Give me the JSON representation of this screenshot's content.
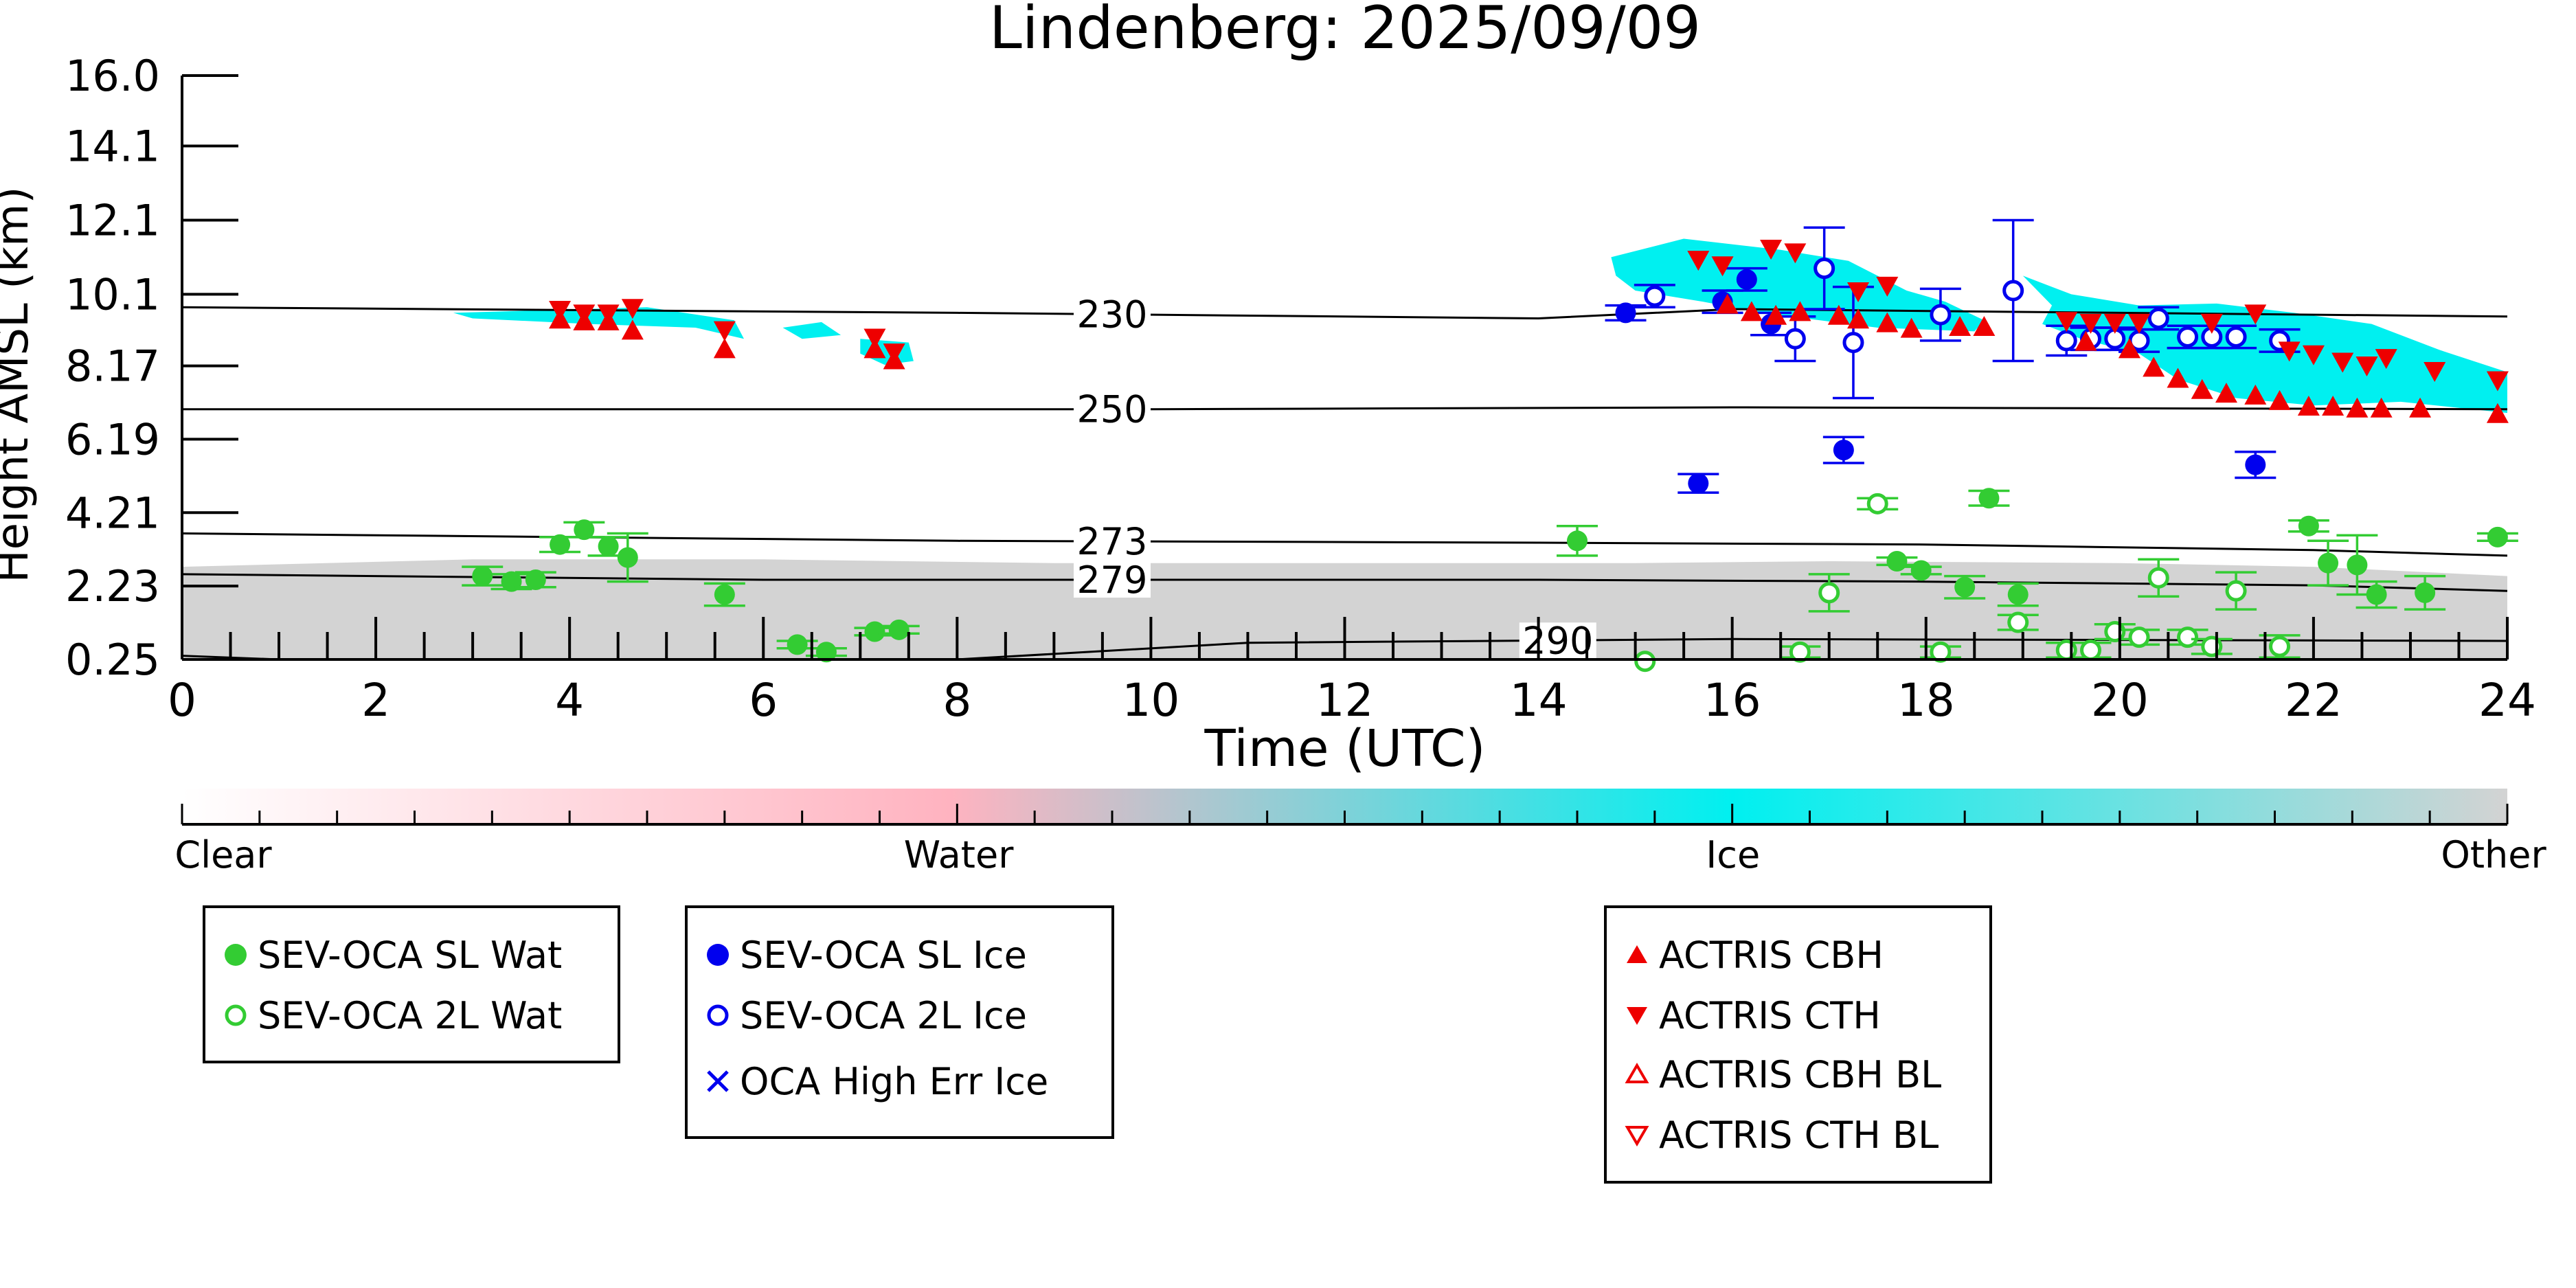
{
  "chart_data": {
    "type": "scatter",
    "title": "Lindenberg: 2025/09/09",
    "xlabel": "Time (UTC)",
    "ylabel": "Height AMSL (km)",
    "xlim": [
      0,
      24
    ],
    "ylim": [
      0.25,
      16.0
    ],
    "x_ticks": [
      0,
      2,
      4,
      6,
      8,
      10,
      12,
      14,
      16,
      18,
      20,
      22,
      24
    ],
    "x_tick_labels": [
      "0",
      "2",
      "4",
      "6",
      "8",
      "10",
      "12",
      "14",
      "16",
      "18",
      "20",
      "22",
      "24"
    ],
    "y_ticks": [
      0.25,
      2.23,
      4.21,
      6.19,
      8.17,
      10.1,
      12.1,
      14.1,
      16.0
    ],
    "y_tick_labels": [
      "0.25",
      "2.23",
      "4.21",
      "6.19",
      "8.17",
      "10.1",
      "12.1",
      "14.1",
      "16.0"
    ],
    "colorbar": {
      "labels": [
        "Clear",
        "Water",
        "Ice",
        "Other"
      ],
      "colors": [
        "#ffffff",
        "#ffb3c0",
        "#00f0f0",
        "#d3d3d3"
      ]
    },
    "isotherms": [
      {
        "label": "230",
        "label_x": 9.6,
        "points": [
          [
            0,
            9.75
          ],
          [
            8,
            9.6
          ],
          [
            14,
            9.45
          ],
          [
            16,
            9.7
          ],
          [
            24,
            9.5
          ]
        ]
      },
      {
        "label": "250",
        "label_x": 9.6,
        "points": [
          [
            0,
            7.0
          ],
          [
            10,
            7.0
          ],
          [
            16,
            7.05
          ],
          [
            24,
            7.0
          ]
        ]
      },
      {
        "label": "273",
        "label_x": 9.6,
        "points": [
          [
            0,
            3.65
          ],
          [
            8,
            3.45
          ],
          [
            14,
            3.4
          ],
          [
            18,
            3.35
          ],
          [
            22,
            3.2
          ],
          [
            24,
            3.05
          ]
        ]
      },
      {
        "label": "279",
        "label_x": 9.6,
        "points": [
          [
            0,
            2.55
          ],
          [
            6,
            2.4
          ],
          [
            14,
            2.4
          ],
          [
            18,
            2.35
          ],
          [
            22,
            2.25
          ],
          [
            24,
            2.1
          ]
        ]
      },
      {
        "label": "290",
        "label_x": 14.2,
        "points": [
          [
            0,
            0.35
          ],
          [
            1,
            0.25
          ],
          [
            8,
            0.25
          ],
          [
            11,
            0.7
          ],
          [
            16,
            0.8
          ],
          [
            24,
            0.75
          ]
        ]
      }
    ],
    "colors": {
      "water": "#33cc33",
      "ice_sl": "#0000ee",
      "ice_2l": "#0000ee",
      "actris": "#ee0000",
      "ice_region": "#00f0f0",
      "other_region": "#d3d3d3",
      "isotherm": "#000000"
    },
    "series": [
      {
        "name": "SEV-OCA SL Wat",
        "marker": "circle-filled",
        "color": "#33cc33",
        "points": [
          {
            "x": 3.1,
            "y": 2.5,
            "err": 0.25
          },
          {
            "x": 3.4,
            "y": 2.35,
            "err": 0.2
          },
          {
            "x": 3.65,
            "y": 2.4,
            "err": 0.2
          },
          {
            "x": 3.9,
            "y": 3.35,
            "err": 0.2
          },
          {
            "x": 4.15,
            "y": 3.75,
            "err": 0.2
          },
          {
            "x": 4.4,
            "y": 3.3,
            "err": 0.25
          },
          {
            "x": 4.6,
            "y": 3.0,
            "err": 0.65
          },
          {
            "x": 5.6,
            "y": 2.0,
            "err": 0.3
          },
          {
            "x": 6.35,
            "y": 0.65,
            "err": 0.1
          },
          {
            "x": 6.65,
            "y": 0.45,
            "err": 0.1
          },
          {
            "x": 7.15,
            "y": 1.0,
            "err": 0.1
          },
          {
            "x": 7.4,
            "y": 1.05,
            "err": 0.1
          },
          {
            "x": 14.4,
            "y": 3.45,
            "err": 0.4
          },
          {
            "x": 17.7,
            "y": 2.9,
            "err": 0.1
          },
          {
            "x": 17.95,
            "y": 2.65,
            "err": 0.1
          },
          {
            "x": 18.4,
            "y": 2.2,
            "err": 0.3
          },
          {
            "x": 18.65,
            "y": 4.6,
            "err": 0.2
          },
          {
            "x": 18.95,
            "y": 2.0,
            "err": 0.3
          },
          {
            "x": 21.95,
            "y": 3.85,
            "err": 0.15
          },
          {
            "x": 22.15,
            "y": 2.85,
            "err": 0.6
          },
          {
            "x": 22.45,
            "y": 2.8,
            "err": 0.8
          },
          {
            "x": 22.65,
            "y": 2.0,
            "err": 0.35
          },
          {
            "x": 23.15,
            "y": 2.05,
            "err": 0.45
          },
          {
            "x": 23.9,
            "y": 3.55,
            "err": 0.1
          }
        ]
      },
      {
        "name": "SEV-OCA 2L Wat",
        "marker": "circle-open",
        "color": "#33cc33",
        "points": [
          {
            "x": 15.1,
            "y": 0.2,
            "err": 0.0
          },
          {
            "x": 16.7,
            "y": 0.45,
            "err": 0.15
          },
          {
            "x": 17.0,
            "y": 2.05,
            "err": 0.5
          },
          {
            "x": 17.5,
            "y": 4.45,
            "err": 0.15
          },
          {
            "x": 18.15,
            "y": 0.45,
            "err": 0.15
          },
          {
            "x": 18.95,
            "y": 1.25,
            "err": 0.2
          },
          {
            "x": 19.45,
            "y": 0.5,
            "err": 0.2
          },
          {
            "x": 19.7,
            "y": 0.5,
            "err": 0.2
          },
          {
            "x": 19.95,
            "y": 1.0,
            "err": 0.2
          },
          {
            "x": 20.2,
            "y": 0.85,
            "err": 0.2
          },
          {
            "x": 20.4,
            "y": 2.45,
            "err": 0.5
          },
          {
            "x": 20.7,
            "y": 0.85,
            "err": 0.2
          },
          {
            "x": 20.95,
            "y": 0.6,
            "err": 0.2
          },
          {
            "x": 21.2,
            "y": 2.1,
            "err": 0.5
          },
          {
            "x": 21.65,
            "y": 0.6,
            "err": 0.3
          }
        ]
      },
      {
        "name": "SEV-OCA SL Ice",
        "marker": "circle-filled",
        "color": "#0000ee",
        "points": [
          {
            "x": 14.9,
            "y": 9.6,
            "err": 0.2
          },
          {
            "x": 15.65,
            "y": 5.0,
            "err": 0.25
          },
          {
            "x": 15.9,
            "y": 9.9,
            "err": 0.3
          },
          {
            "x": 16.15,
            "y": 10.5,
            "err": 0.3
          },
          {
            "x": 16.4,
            "y": 9.3,
            "err": 0.3
          },
          {
            "x": 17.15,
            "y": 5.9,
            "err": 0.35
          },
          {
            "x": 21.4,
            "y": 5.5,
            "err": 0.35
          }
        ]
      },
      {
        "name": "SEV-OCA 2L Ice",
        "marker": "circle-open",
        "color": "#0000ee",
        "points": [
          {
            "x": 15.2,
            "y": 10.05,
            "err": 0.3
          },
          {
            "x": 16.65,
            "y": 8.9,
            "err": 0.6
          },
          {
            "x": 16.95,
            "y": 10.8,
            "err": 1.1
          },
          {
            "x": 17.25,
            "y": 8.8,
            "err": 1.5
          },
          {
            "x": 18.15,
            "y": 9.55,
            "err": 0.7
          },
          {
            "x": 18.9,
            "y": 10.2,
            "err": 1.9
          },
          {
            "x": 19.45,
            "y": 8.85,
            "err": 0.4
          },
          {
            "x": 19.7,
            "y": 8.9,
            "err": 0.3
          },
          {
            "x": 19.95,
            "y": 8.9,
            "err": 0.3
          },
          {
            "x": 20.2,
            "y": 8.85,
            "err": 0.3
          },
          {
            "x": 20.4,
            "y": 9.45,
            "err": 0.3
          },
          {
            "x": 20.7,
            "y": 8.95,
            "err": 0.3
          },
          {
            "x": 20.95,
            "y": 8.95,
            "err": 0.3
          },
          {
            "x": 21.2,
            "y": 8.95,
            "err": 0.3
          },
          {
            "x": 21.65,
            "y": 8.85,
            "err": 0.3
          }
        ]
      },
      {
        "name": "OCA High Err Ice",
        "marker": "x",
        "color": "#0000ee",
        "points": []
      },
      {
        "name": "ACTRIS CBH",
        "marker": "triangle-up-filled",
        "color": "#ee0000",
        "points": [
          {
            "x": 3.9,
            "y": 9.4
          },
          {
            "x": 4.15,
            "y": 9.35
          },
          {
            "x": 4.4,
            "y": 9.35
          },
          {
            "x": 4.65,
            "y": 9.1
          },
          {
            "x": 5.6,
            "y": 8.6
          },
          {
            "x": 7.15,
            "y": 8.6
          },
          {
            "x": 7.35,
            "y": 8.3
          },
          {
            "x": 15.95,
            "y": 9.8
          },
          {
            "x": 16.2,
            "y": 9.6
          },
          {
            "x": 16.45,
            "y": 9.5
          },
          {
            "x": 16.7,
            "y": 9.6
          },
          {
            "x": 17.1,
            "y": 9.5
          },
          {
            "x": 17.3,
            "y": 9.4
          },
          {
            "x": 17.6,
            "y": 9.3
          },
          {
            "x": 17.85,
            "y": 9.15
          },
          {
            "x": 18.35,
            "y": 9.2
          },
          {
            "x": 18.6,
            "y": 9.2
          },
          {
            "x": 19.65,
            "y": 8.8
          },
          {
            "x": 20.1,
            "y": 8.6
          },
          {
            "x": 20.35,
            "y": 8.1
          },
          {
            "x": 20.6,
            "y": 7.8
          },
          {
            "x": 20.85,
            "y": 7.5
          },
          {
            "x": 21.1,
            "y": 7.4
          },
          {
            "x": 21.4,
            "y": 7.35
          },
          {
            "x": 21.65,
            "y": 7.2
          },
          {
            "x": 21.95,
            "y": 7.05
          },
          {
            "x": 22.2,
            "y": 7.05
          },
          {
            "x": 22.45,
            "y": 7.0
          },
          {
            "x": 22.7,
            "y": 7.0
          },
          {
            "x": 23.1,
            "y": 7.0
          },
          {
            "x": 23.9,
            "y": 6.85
          }
        ]
      },
      {
        "name": "ACTRIS CTH",
        "marker": "triangle-down-filled",
        "color": "#ee0000",
        "points": [
          {
            "x": 3.9,
            "y": 9.7
          },
          {
            "x": 4.15,
            "y": 9.6
          },
          {
            "x": 4.4,
            "y": 9.6
          },
          {
            "x": 4.65,
            "y": 9.75
          },
          {
            "x": 5.6,
            "y": 9.15
          },
          {
            "x": 7.15,
            "y": 8.95
          },
          {
            "x": 7.35,
            "y": 8.55
          },
          {
            "x": 15.65,
            "y": 11.05
          },
          {
            "x": 15.9,
            "y": 10.9
          },
          {
            "x": 16.4,
            "y": 11.35
          },
          {
            "x": 16.65,
            "y": 11.25
          },
          {
            "x": 17.3,
            "y": 10.2
          },
          {
            "x": 17.6,
            "y": 10.35
          },
          {
            "x": 19.45,
            "y": 9.4
          },
          {
            "x": 19.7,
            "y": 9.35
          },
          {
            "x": 19.95,
            "y": 9.35
          },
          {
            "x": 20.2,
            "y": 9.35
          },
          {
            "x": 20.95,
            "y": 9.35
          },
          {
            "x": 21.4,
            "y": 9.6
          },
          {
            "x": 21.75,
            "y": 8.6
          },
          {
            "x": 22.0,
            "y": 8.5
          },
          {
            "x": 22.3,
            "y": 8.3
          },
          {
            "x": 22.55,
            "y": 8.2
          },
          {
            "x": 22.75,
            "y": 8.4
          },
          {
            "x": 23.25,
            "y": 8.05
          },
          {
            "x": 23.9,
            "y": 7.8
          }
        ]
      },
      {
        "name": "ACTRIS CBH BL",
        "marker": "triangle-up-open",
        "color": "#ee0000",
        "points": []
      },
      {
        "name": "ACTRIS CTH BL",
        "marker": "triangle-down-open",
        "color": "#ee0000",
        "points": []
      }
    ],
    "regions": {
      "ice": [
        {
          "points": [
            [
              2.8,
              9.6
            ],
            [
              4.8,
              9.75
            ],
            [
              5.7,
              9.4
            ],
            [
              5.8,
              8.9
            ],
            [
              5.3,
              9.2
            ],
            [
              4.2,
              9.3
            ],
            [
              3.0,
              9.45
            ]
          ]
        },
        {
          "points": [
            [
              6.2,
              9.2
            ],
            [
              6.6,
              9.35
            ],
            [
              6.8,
              9.0
            ],
            [
              6.4,
              8.9
            ]
          ]
        },
        {
          "points": [
            [
              7.0,
              8.9
            ],
            [
              7.5,
              8.8
            ],
            [
              7.55,
              8.3
            ],
            [
              7.25,
              8.2
            ],
            [
              7.0,
              8.5
            ]
          ]
        },
        {
          "points": [
            [
              14.75,
              11.1
            ],
            [
              15.5,
              11.6
            ],
            [
              16.5,
              11.3
            ],
            [
              17.2,
              11.0
            ],
            [
              17.8,
              10.2
            ],
            [
              18.2,
              9.9
            ],
            [
              18.6,
              9.4
            ],
            [
              18.5,
              9.1
            ],
            [
              17.5,
              9.2
            ],
            [
              16.3,
              9.6
            ],
            [
              15.7,
              9.9
            ],
            [
              15.0,
              10.2
            ],
            [
              14.8,
              10.6
            ]
          ]
        },
        {
          "points": [
            [
              19.0,
              10.6
            ],
            [
              19.3,
              10.3
            ],
            [
              19.5,
              10.1
            ],
            [
              20.2,
              9.8
            ],
            [
              21.0,
              9.85
            ],
            [
              21.8,
              9.6
            ],
            [
              22.6,
              9.3
            ],
            [
              23.3,
              8.6
            ],
            [
              24.0,
              8.0
            ],
            [
              24.0,
              6.9
            ],
            [
              22.9,
              7.2
            ],
            [
              22.0,
              7.1
            ],
            [
              21.2,
              7.3
            ],
            [
              20.6,
              7.8
            ],
            [
              20.2,
              8.5
            ],
            [
              19.6,
              8.9
            ],
            [
              19.2,
              9.3
            ],
            [
              19.3,
              9.8
            ]
          ]
        }
      ],
      "other": [
        {
          "points": [
            [
              0,
              0.25
            ],
            [
              0,
              2.75
            ],
            [
              3,
              2.95
            ],
            [
              6,
              2.95
            ],
            [
              9,
              2.85
            ],
            [
              12,
              2.85
            ],
            [
              15,
              2.85
            ],
            [
              17,
              2.9
            ],
            [
              20,
              2.85
            ],
            [
              22,
              2.75
            ],
            [
              24,
              2.5
            ],
            [
              24,
              0.25
            ]
          ]
        }
      ]
    }
  }
}
